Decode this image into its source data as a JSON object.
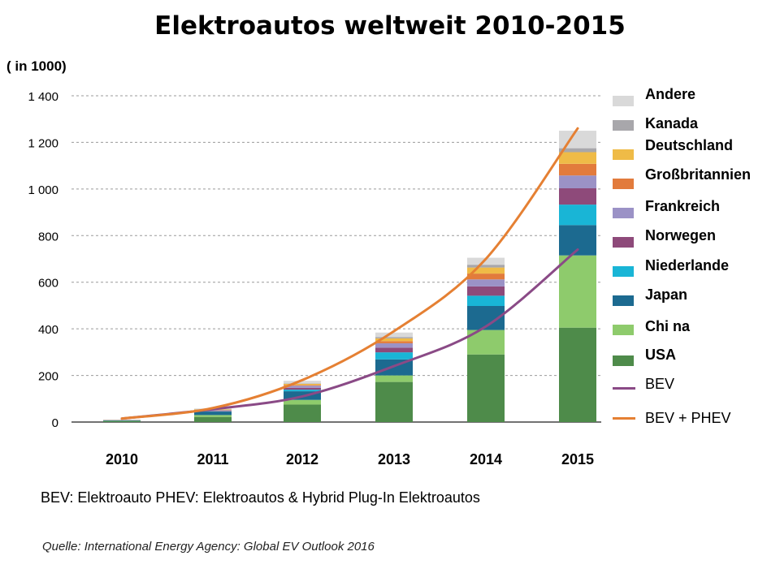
{
  "chart_data": {
    "type": "bar",
    "stacked": true,
    "title": "Elektroautos  weltweit 2010-2015",
    "unit_label": "( in 1000)",
    "categories": [
      "2010",
      "2011",
      "2012",
      "2013",
      "2014",
      "2015"
    ],
    "ylim": [
      0,
      1400
    ],
    "yticks": [
      0,
      200,
      400,
      600,
      800,
      1000,
      1200,
      1400
    ],
    "ytick_labels": [
      "0",
      "200",
      "400",
      "600",
      "800",
      "1 000",
      "1 200",
      "1 400"
    ],
    "grid": true,
    "legend_position": "right",
    "series": [
      {
        "name": "USA",
        "color": "#4e8b4a",
        "values": [
          4,
          22,
          75,
          172,
          290,
          405
        ]
      },
      {
        "name": "Chi na",
        "color": "#8ecb6c",
        "values": [
          1,
          8,
          20,
          28,
          105,
          310
        ]
      },
      {
        "name": "Japan",
        "color": "#1c6a90",
        "values": [
          3,
          15,
          37,
          69,
          103,
          130
        ]
      },
      {
        "name": "Niederlande",
        "color": "#19b5d6",
        "values": [
          0,
          1,
          7,
          30,
          44,
          88
        ]
      },
      {
        "name": "Norwegen",
        "color": "#8e4a7a",
        "values": [
          0,
          2,
          8,
          20,
          40,
          70
        ]
      },
      {
        "name": "Frankreich",
        "color": "#9b92c6",
        "values": [
          0,
          3,
          9,
          19,
          30,
          55
        ]
      },
      {
        "name": "Großbritannien",
        "color": "#e27b3c",
        "values": [
          1,
          1,
          3,
          9,
          25,
          50
        ]
      },
      {
        "name": "Deutschland",
        "color": "#efbb47",
        "values": [
          0,
          2,
          5,
          12,
          26,
          50
        ]
      },
      {
        "name": "Kanada",
        "color": "#a8a7ab",
        "values": [
          0,
          1,
          2,
          6,
          12,
          17
        ]
      },
      {
        "name": "Andere",
        "color": "#d9d9d9",
        "values": [
          1,
          3,
          11,
          19,
          30,
          75
        ]
      }
    ],
    "lines": [
      {
        "name": "BEV",
        "color": "#8a4a86",
        "values": [
          15,
          55,
          110,
          240,
          410,
          740
        ]
      },
      {
        "name": "BEV + PHEV",
        "color": "#e58033",
        "values": [
          15,
          60,
          180,
          390,
          700,
          1260
        ]
      }
    ]
  },
  "note": "BEV: Elektroauto    PHEV: Elektroautos & Hybrid   Plug-In Elektroautos",
  "source": "Quelle: International Energy Agency: Global EV Outlook 2016"
}
